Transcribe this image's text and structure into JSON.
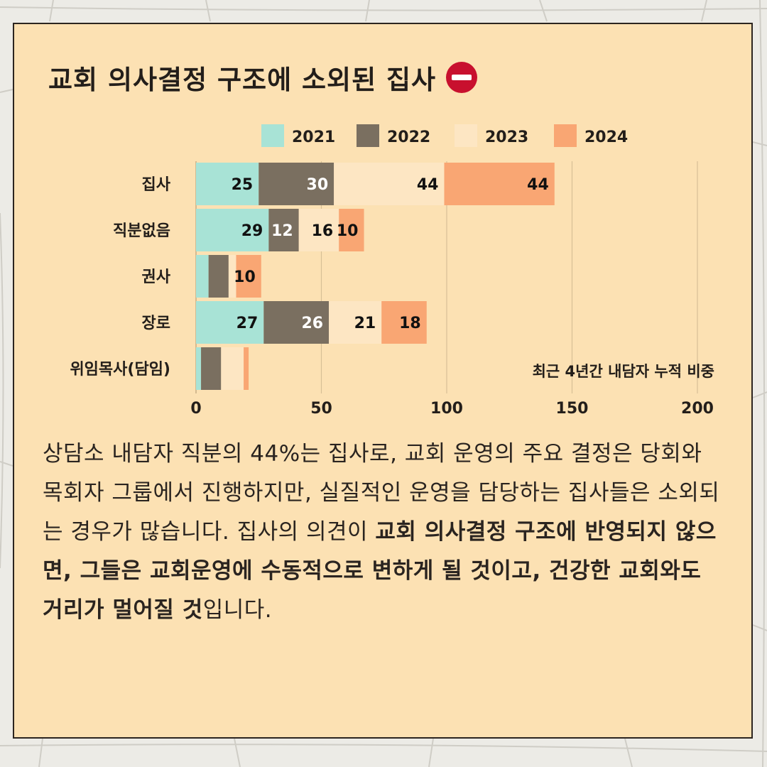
{
  "title": "교회 의사결정 구조에 소외된 집사",
  "title_icon": "no-entry-icon",
  "colors": {
    "card_bg": "#fce1b3",
    "2021": "#a8e3d6",
    "2022": "#7a6f60",
    "2023": "#fde6c3",
    "2024": "#f9a673",
    "icon_red": "#c8102e"
  },
  "chart_data": {
    "type": "bar",
    "orientation": "horizontal",
    "stacked": true,
    "categories": [
      "집사",
      "직분없음",
      "권사",
      "장로",
      "위임목사(담임)"
    ],
    "series": [
      {
        "name": "2021",
        "values": [
          25,
          29,
          5,
          27,
          2
        ]
      },
      {
        "name": "2022",
        "values": [
          30,
          12,
          8,
          26,
          8
        ]
      },
      {
        "name": "2023",
        "values": [
          44,
          16,
          3,
          21,
          9
        ]
      },
      {
        "name": "2024",
        "values": [
          44,
          10,
          10,
          18,
          2
        ]
      }
    ],
    "data_labels": [
      [
        "25",
        "30",
        "44",
        "44"
      ],
      [
        "29",
        "12",
        "16",
        "10"
      ],
      [
        "",
        "",
        "",
        "10"
      ],
      [
        "27",
        "26",
        "21",
        "18"
      ],
      [
        "",
        "",
        "",
        ""
      ]
    ],
    "label_colors": [
      "#111111",
      "#ffffff",
      "#111111",
      "#111111"
    ],
    "xlim": [
      0,
      200
    ],
    "x_ticks": [
      "0",
      "50",
      "100",
      "150",
      "200"
    ],
    "grid": true,
    "legend_position": "top",
    "annotation": "최근 4년간 내담자 누적 비중",
    "xlabel": "",
    "ylabel": ""
  },
  "paragraph": {
    "part1": "상담소 내담자 직분의 44%는 집사로, 교회 운영의 주요 결정은 당회와 목회자 그룹에서 진행하지만, 실질적인 운영을 담당하는 집사들은 소외되는 경우가 많습니다. 집사의 의견이 ",
    "emphasis1": "교회 의사결정 구조에 반영되지 않으면, 그들은 교회운영에 수동적으로 변하게 될 것이고, 건강한 교회와도 거리가 멀어질 것",
    "part2": "입니다."
  }
}
